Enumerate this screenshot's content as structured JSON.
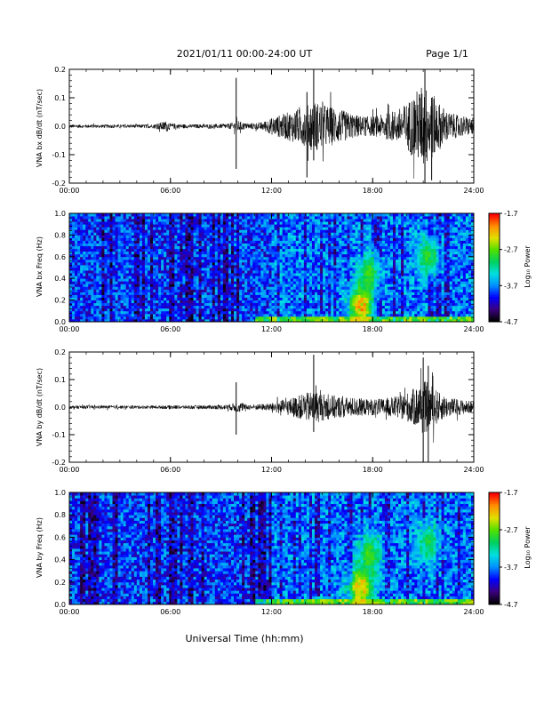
{
  "header": {
    "title": "2021/01/11  00:00-24:00 UT",
    "page": "Page 1/1"
  },
  "footer": {
    "xlabel": "Universal Time (hh:mm)"
  },
  "x_ticks": [
    "00:00",
    "06:00",
    "12:00",
    "18:00",
    "24:00"
  ],
  "colorbar": {
    "label": "Log₁₀ Power",
    "ticks": [
      "-1.7",
      "-2.7",
      "-3.7",
      "-4.7"
    ],
    "colors": [
      "#000000",
      "#3b0080",
      "#0000ff",
      "#0090ff",
      "#00e0e0",
      "#00d060",
      "#50e000",
      "#e0e000",
      "#ff9000",
      "#ff0000"
    ]
  },
  "chart_data": [
    {
      "type": "line",
      "ylabel": "VNA bx dB/dt (nT/sec)",
      "xlim": [
        0,
        24
      ],
      "ylim": [
        -0.2,
        0.2
      ],
      "yticks": [
        "0.2",
        "0.1",
        "0.0",
        "-0.1",
        "-0.2"
      ],
      "envelope": {
        "x": [
          0,
          1,
          2,
          3,
          4,
          5,
          5.8,
          6,
          7,
          8,
          9,
          9.5,
          10,
          10.5,
          11,
          11.5,
          12,
          12.5,
          13,
          13.5,
          14,
          14.5,
          15,
          15.5,
          16,
          16.5,
          17,
          17.5,
          18,
          18.5,
          19,
          19.5,
          20,
          20.5,
          21,
          21.5,
          22,
          22.5,
          23,
          23.5,
          24
        ],
        "amplitude": [
          0.006,
          0.006,
          0.006,
          0.006,
          0.006,
          0.007,
          0.02,
          0.01,
          0.007,
          0.007,
          0.008,
          0.01,
          0.02,
          0.01,
          0.012,
          0.015,
          0.03,
          0.04,
          0.05,
          0.06,
          0.07,
          0.09,
          0.08,
          0.07,
          0.06,
          0.05,
          0.04,
          0.035,
          0.035,
          0.04,
          0.05,
          0.06,
          0.08,
          0.12,
          0.15,
          0.12,
          0.08,
          0.05,
          0.04,
          0.035,
          0.03
        ]
      },
      "spikes": [
        {
          "x": 9.9,
          "low": -0.15,
          "high": 0.17
        },
        {
          "x": 14.1,
          "low": -0.18,
          "high": 0.12
        },
        {
          "x": 14.5,
          "low": -0.12,
          "high": 0.2
        },
        {
          "x": 21.1,
          "low": -0.2,
          "high": 0.2
        },
        {
          "x": 21.5,
          "low": -0.19,
          "high": 0.1
        }
      ]
    },
    {
      "type": "heatmap",
      "ylabel": "VNA bx Freq (Hz)",
      "xlim": [
        0,
        24
      ],
      "ylim": [
        0,
        1.0
      ],
      "yticks": [
        "1.0",
        "0.8",
        "0.6",
        "0.4",
        "0.2",
        "0.0"
      ],
      "zlim": [
        -4.7,
        -1.7
      ],
      "zlabel": "Log₁₀ Power",
      "features": [
        {
          "x": 17.3,
          "f": 0.15,
          "level": -1.8
        },
        {
          "x": 17.8,
          "f": 0.45,
          "level": -2.6
        },
        {
          "x": 21.3,
          "f": 0.6,
          "level": -2.7
        },
        {
          "x": 15.0,
          "f": 0.02,
          "level": -2.4
        }
      ]
    },
    {
      "type": "line",
      "ylabel": "VNA by dB/dt (nT/sec)",
      "xlim": [
        0,
        24
      ],
      "ylim": [
        -0.2,
        0.2
      ],
      "yticks": [
        "0.2",
        "0.1",
        "0.0",
        "-0.1",
        "-0.2"
      ],
      "envelope": {
        "x": [
          0,
          1,
          2,
          3,
          4,
          5,
          6,
          7,
          8,
          9,
          9.5,
          10,
          10.5,
          11,
          11.5,
          12,
          12.5,
          13,
          13.5,
          14,
          14.5,
          15,
          15.5,
          16,
          16.5,
          17,
          17.5,
          18,
          18.5,
          19,
          19.5,
          20,
          20.5,
          21,
          21.5,
          22,
          22.5,
          23,
          23.5,
          24
        ],
        "amplitude": [
          0.006,
          0.006,
          0.006,
          0.006,
          0.006,
          0.006,
          0.007,
          0.007,
          0.007,
          0.008,
          0.01,
          0.02,
          0.01,
          0.01,
          0.012,
          0.015,
          0.025,
          0.03,
          0.04,
          0.05,
          0.06,
          0.05,
          0.045,
          0.04,
          0.035,
          0.035,
          0.03,
          0.03,
          0.03,
          0.035,
          0.04,
          0.05,
          0.07,
          0.1,
          0.08,
          0.05,
          0.035,
          0.03,
          0.025,
          0.02
        ]
      },
      "spikes": [
        {
          "x": 9.9,
          "low": -0.1,
          "high": 0.09
        },
        {
          "x": 14.5,
          "low": -0.09,
          "high": 0.19
        },
        {
          "x": 21.0,
          "low": -0.2,
          "high": 0.18
        },
        {
          "x": 21.3,
          "low": -0.2,
          "high": 0.15
        }
      ]
    },
    {
      "type": "heatmap",
      "ylabel": "VNA by Freq (Hz)",
      "xlim": [
        0,
        24
      ],
      "ylim": [
        0,
        1.0
      ],
      "yticks": [
        "1.0",
        "0.8",
        "0.6",
        "0.4",
        "0.2",
        "0.0"
      ],
      "zlim": [
        -4.7,
        -1.7
      ],
      "zlabel": "Log₁₀ Power",
      "features": [
        {
          "x": 17.3,
          "f": 0.15,
          "level": -1.8
        },
        {
          "x": 17.8,
          "f": 0.45,
          "level": -2.6
        },
        {
          "x": 21.3,
          "f": 0.55,
          "level": -2.8
        },
        {
          "x": 15.0,
          "f": 0.03,
          "level": -2.4
        }
      ]
    }
  ]
}
